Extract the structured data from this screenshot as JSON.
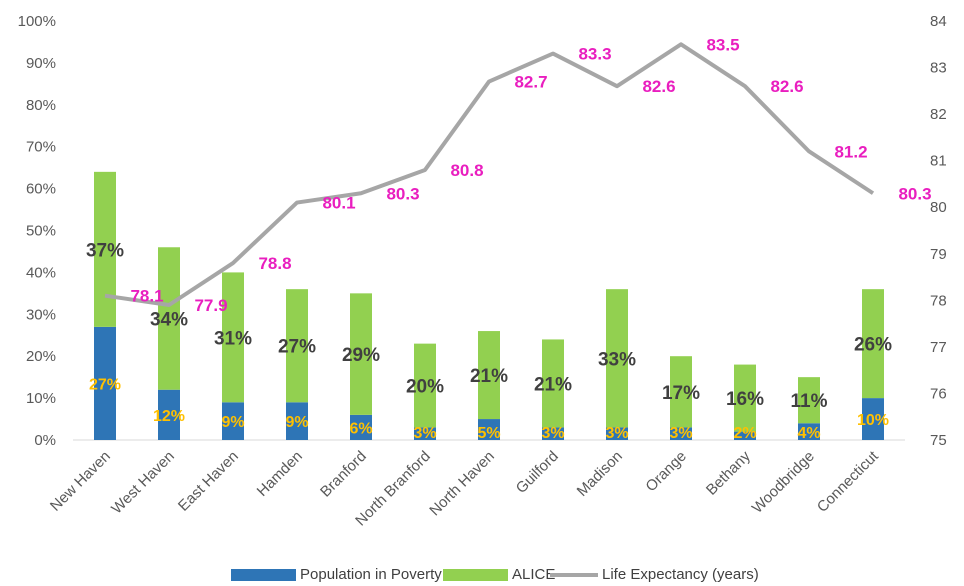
{
  "chart_data": {
    "type": "bar",
    "categories": [
      "New Haven",
      "West Haven",
      "East Haven",
      "Hamden",
      "Branford",
      "North Branford",
      "North Haven",
      "Guilford",
      "Madison",
      "Orange",
      "Bethany",
      "Woodbridge",
      "Connecticut"
    ],
    "series": [
      {
        "name": "Population in Poverty",
        "kind": "bar",
        "stack": "total",
        "axis": "left",
        "color": "#2E75B6",
        "values": [
          27,
          12,
          9,
          9,
          6,
          3,
          5,
          3,
          3,
          3,
          2,
          4,
          10
        ],
        "labels": [
          "27%",
          "12%",
          "9%",
          "9%",
          "6%",
          "3%",
          "5%",
          "3%",
          "3%",
          "3%",
          "2%",
          "4%",
          "10%"
        ]
      },
      {
        "name": "ALICE",
        "kind": "bar",
        "stack": "total",
        "axis": "left",
        "color": "#92D050",
        "values": [
          37,
          34,
          31,
          27,
          29,
          20,
          21,
          21,
          33,
          17,
          16,
          11,
          26
        ],
        "labels": [
          "37%",
          "34%",
          "31%",
          "27%",
          "29%",
          "20%",
          "21%",
          "21%",
          "33%",
          "17%",
          "16%",
          "11%",
          "26%"
        ]
      },
      {
        "name": "Life Expectancy (years)",
        "kind": "line",
        "axis": "right",
        "color": "#A6A6A6",
        "values": [
          78.1,
          77.9,
          78.8,
          80.1,
          80.3,
          80.8,
          82.7,
          83.3,
          82.6,
          83.5,
          82.6,
          81.2,
          80.3
        ],
        "labels": [
          "78.1",
          "77.9",
          "78.8",
          "80.1",
          "80.3",
          "80.8",
          "82.7",
          "83.3",
          "82.6",
          "83.5",
          "82.6",
          "81.2",
          "80.3"
        ]
      }
    ],
    "y_left": {
      "min": 0,
      "max": 100,
      "ticks": [
        "0%",
        "10%",
        "20%",
        "30%",
        "40%",
        "50%",
        "60%",
        "70%",
        "80%",
        "90%",
        "100%"
      ]
    },
    "y_right": {
      "min": 75,
      "max": 84,
      "ticks": [
        "75",
        "76",
        "77",
        "78",
        "79",
        "80",
        "81",
        "82",
        "83",
        "84"
      ]
    },
    "grid": false,
    "legend_position": "bottom",
    "legend": [
      "Population in Poverty",
      "ALICE",
      "Life Expectancy (years)"
    ],
    "label_colors": {
      "alice": "#404040",
      "poverty": "#FFC000",
      "life": "#E91EBF"
    }
  }
}
